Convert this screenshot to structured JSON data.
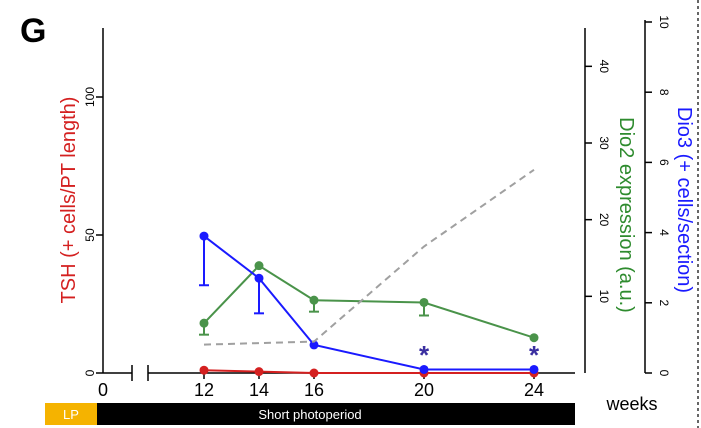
{
  "panel": {
    "letter": "G"
  },
  "chart_data": {
    "type": "line",
    "xlabel": "weeks",
    "x_ticks": [
      0,
      12,
      14,
      16,
      20,
      24
    ],
    "x_break": true,
    "axes": {
      "tsh": {
        "label": "TSH (+ cells/PT length)",
        "color": "#d42020",
        "range": [
          0,
          125
        ],
        "ticks": [
          0,
          50,
          100
        ]
      },
      "dio2": {
        "label": "Dio2 expression (a.u.)",
        "color": "#2e8b2e",
        "range": [
          0,
          45
        ],
        "ticks": [
          10,
          20,
          30,
          40
        ]
      },
      "dio3": {
        "label": "Dio3 (+ cells/section)",
        "color": "#1a1aff",
        "range": [
          0,
          10
        ],
        "ticks": [
          0,
          2,
          4,
          6,
          8,
          10
        ]
      }
    },
    "series": [
      {
        "axis": "tsh",
        "style": "solid",
        "color": "#d42020",
        "x": [
          12,
          14,
          16,
          20,
          24
        ],
        "y": [
          1,
          0.5,
          0,
          0,
          0
        ]
      },
      {
        "axis": "dio2",
        "style": "solid",
        "color": "#4a934a",
        "x": [
          12,
          14,
          16,
          20,
          24
        ],
        "y": [
          6.5,
          14,
          9.5,
          9.2,
          4.6
        ],
        "err": [
          1.5,
          0,
          1.5,
          1.7,
          0
        ]
      },
      {
        "axis": "dio3",
        "style": "solid",
        "color": "#1a1aff",
        "x": [
          12,
          14,
          16,
          20,
          24
        ],
        "y": [
          3.9,
          2.7,
          0.8,
          0.1,
          0.1
        ],
        "err": [
          1.4,
          1.0,
          0,
          0,
          0
        ]
      },
      {
        "axis": "dio2",
        "style": "dashed",
        "color": "#a0a0a0",
        "x": [
          12,
          16,
          20,
          24
        ],
        "y": [
          3.7,
          4.1,
          16.5,
          26.5
        ]
      }
    ],
    "annotations": [
      {
        "x": 20,
        "text": "*",
        "color": "#3a2fa0"
      },
      {
        "x": 24,
        "text": "*",
        "color": "#3a2fa0"
      }
    ],
    "photoperiod_bar": [
      {
        "label": "LP",
        "color": "#f5b300",
        "text_color": "#ffffff"
      },
      {
        "label": "Short photoperiod",
        "color": "#000000",
        "text_color": "#ffffff"
      }
    ]
  }
}
